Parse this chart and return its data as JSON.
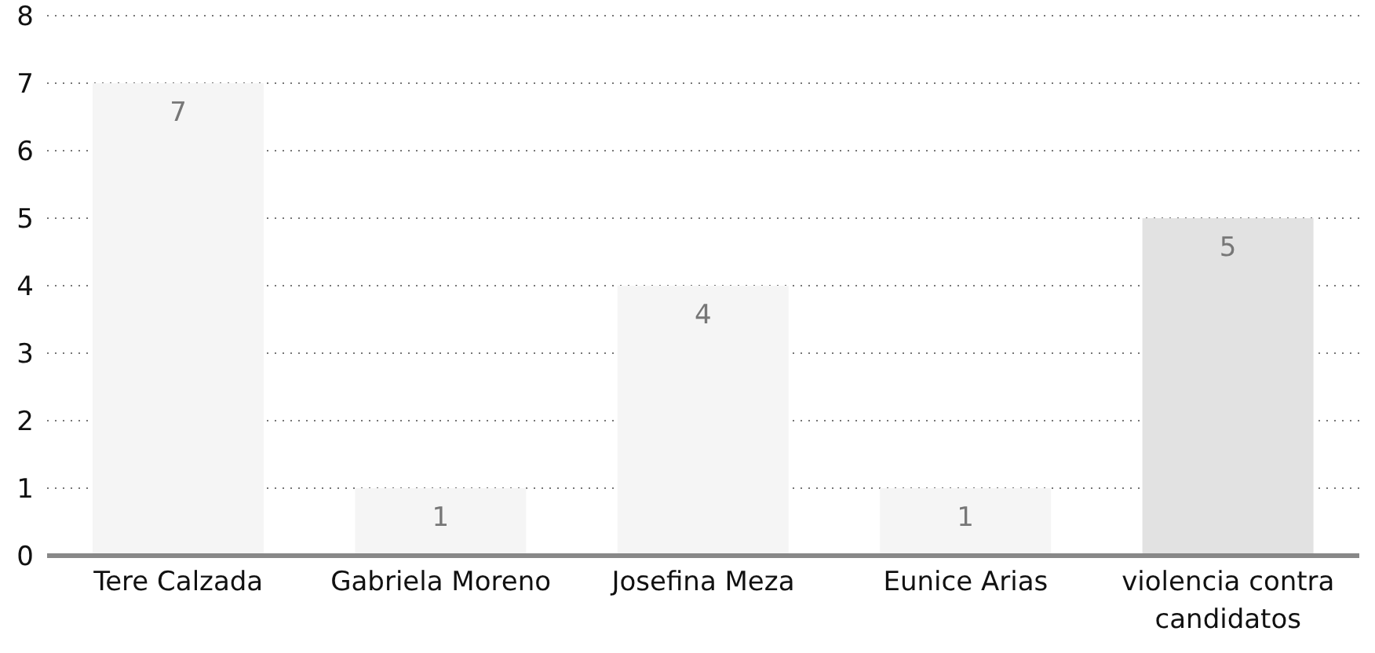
{
  "chart_data": {
    "type": "bar",
    "categories": [
      "Tere Calzada",
      "Gabriela Moreno",
      "Josefina Meza",
      "Eunice Arias",
      "violencia contra candidatos"
    ],
    "values": [
      7,
      1,
      4,
      1,
      5
    ],
    "colors": [
      "#f5f5f5",
      "#f5f5f5",
      "#f5f5f5",
      "#f5f5f5",
      "#e2e2e2"
    ],
    "ylim": [
      0,
      8
    ],
    "yticks": [
      0,
      1,
      2,
      3,
      4,
      5,
      6,
      7,
      8
    ],
    "grid": "y",
    "data_labels": true
  }
}
